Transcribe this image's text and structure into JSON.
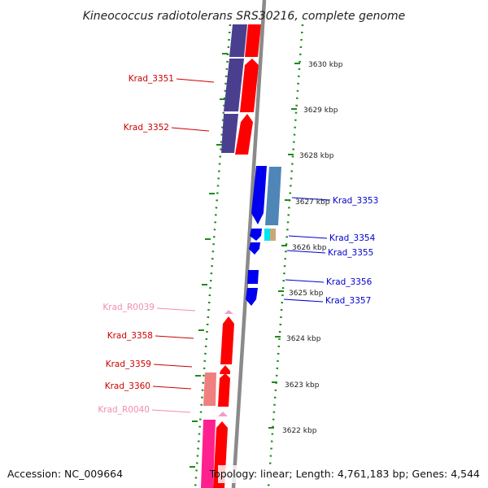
{
  "title": "Kineococcus radiotolerans SRS30216, complete genome",
  "footer": {
    "accession": "Accession: NC_009664",
    "topology": "Topology: linear; Length: 4,761,183 bp; Genes: 4,544"
  },
  "colors": {
    "backbone": "#8a8a8a",
    "dots": "#1e8a1e",
    "reverse_label": "#cc0000",
    "forward_label": "#0000cc",
    "rna_label": "#f08cb4",
    "gene_red": "#ff0000",
    "gene_purple": "#4a3f8f",
    "gene_blue": "#0000ee",
    "gene_steel": "#4f86b8",
    "gene_pink": "#f0a0c8",
    "gene_salmon": "#f08080",
    "gene_magenta": "#ff2090",
    "gene_cyan": "#00e5ee",
    "gene_tan": "#c8a878"
  },
  "kbp_ticks": [
    "3630 kbp",
    "3629 kbp",
    "3628 kbp",
    "3627 kbp",
    "3626 kbp",
    "3625 kbp",
    "3624 kbp",
    "3623 kbp",
    "3622 kbp"
  ],
  "genes": [
    {
      "label": "Krad_3351",
      "strand": "reverse"
    },
    {
      "label": "Krad_3352",
      "strand": "reverse"
    },
    {
      "label": "Krad_3353",
      "strand": "forward"
    },
    {
      "label": "Krad_3354",
      "strand": "forward"
    },
    {
      "label": "Krad_3355",
      "strand": "forward"
    },
    {
      "label": "Krad_3356",
      "strand": "forward"
    },
    {
      "label": "Krad_3357",
      "strand": "forward"
    },
    {
      "label": "Krad_R0039",
      "strand": "rna"
    },
    {
      "label": "Krad_3358",
      "strand": "reverse"
    },
    {
      "label": "Krad_3359",
      "strand": "reverse"
    },
    {
      "label": "Krad_3360",
      "strand": "reverse"
    },
    {
      "label": "Krad_R0040",
      "strand": "rna"
    }
  ]
}
